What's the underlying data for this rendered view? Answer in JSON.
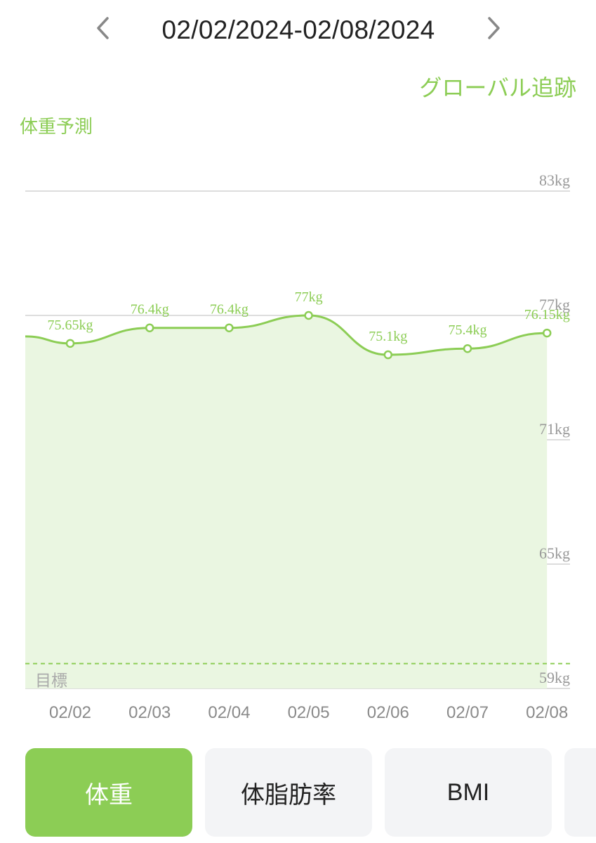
{
  "header": {
    "date_range": "02/02/2024-02/08/2024",
    "prev_icon": "chevron-left-icon",
    "next_icon": "chevron-right-icon"
  },
  "global_link": "グローバル追跡",
  "chart_title": "体重予測",
  "chart_data": {
    "type": "area",
    "categories": [
      "02/02",
      "02/03",
      "02/04",
      "02/05",
      "02/06",
      "02/07",
      "02/08"
    ],
    "series": [
      {
        "values": [
          75.65,
          76.4,
          76.4,
          77,
          75.1,
          75.4,
          76.15
        ],
        "labels": [
          "75.65kg",
          "76.4kg",
          "76.4kg",
          "77kg",
          "75.1kg",
          "75.4kg",
          "76.15kg"
        ]
      }
    ],
    "ylim": [
      59,
      83
    ],
    "y_ticks": [
      83,
      77,
      71,
      65,
      59
    ],
    "y_tick_labels": [
      "83kg",
      "77kg",
      "71kg",
      "65kg",
      "59kg"
    ],
    "grid": true,
    "target_label": "目標",
    "target_value": 60.2,
    "line_color": "#8ccd55",
    "fill_color": "#eaf6e1"
  },
  "tabs": [
    {
      "label": "体重",
      "active": true
    },
    {
      "label": "体脂肪率",
      "active": false
    },
    {
      "label": "BMI",
      "active": false
    },
    {
      "label": "",
      "active": false
    }
  ]
}
